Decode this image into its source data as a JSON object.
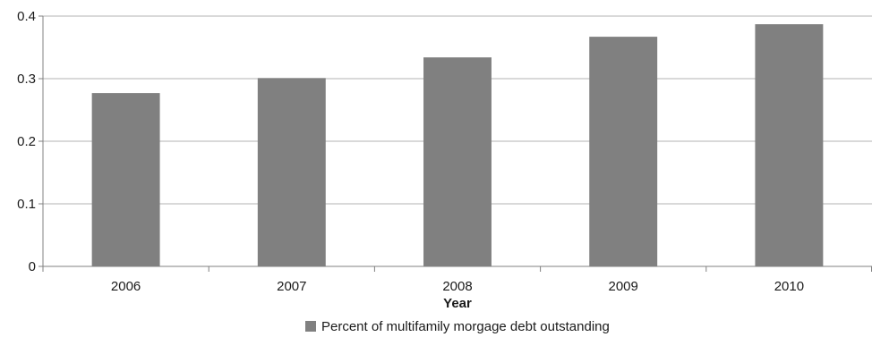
{
  "chart_data": {
    "type": "bar",
    "categories": [
      "2006",
      "2007",
      "2008",
      "2009",
      "2010"
    ],
    "series": [
      {
        "name": "Percent of multifamily morgage debt outstanding",
        "values": [
          0.277,
          0.301,
          0.334,
          0.367,
          0.387
        ],
        "color": "#808080"
      }
    ],
    "title": "",
    "xlabel": "Year",
    "ylabel": "",
    "ylim": [
      0,
      0.4
    ],
    "yticks": [
      "0",
      "0.1",
      "0.2",
      "0.3",
      "0.4"
    ],
    "grid": true,
    "legend_position": "bottom-center",
    "gridline_color": "#b3b3b3",
    "axis_color": "#808080"
  }
}
